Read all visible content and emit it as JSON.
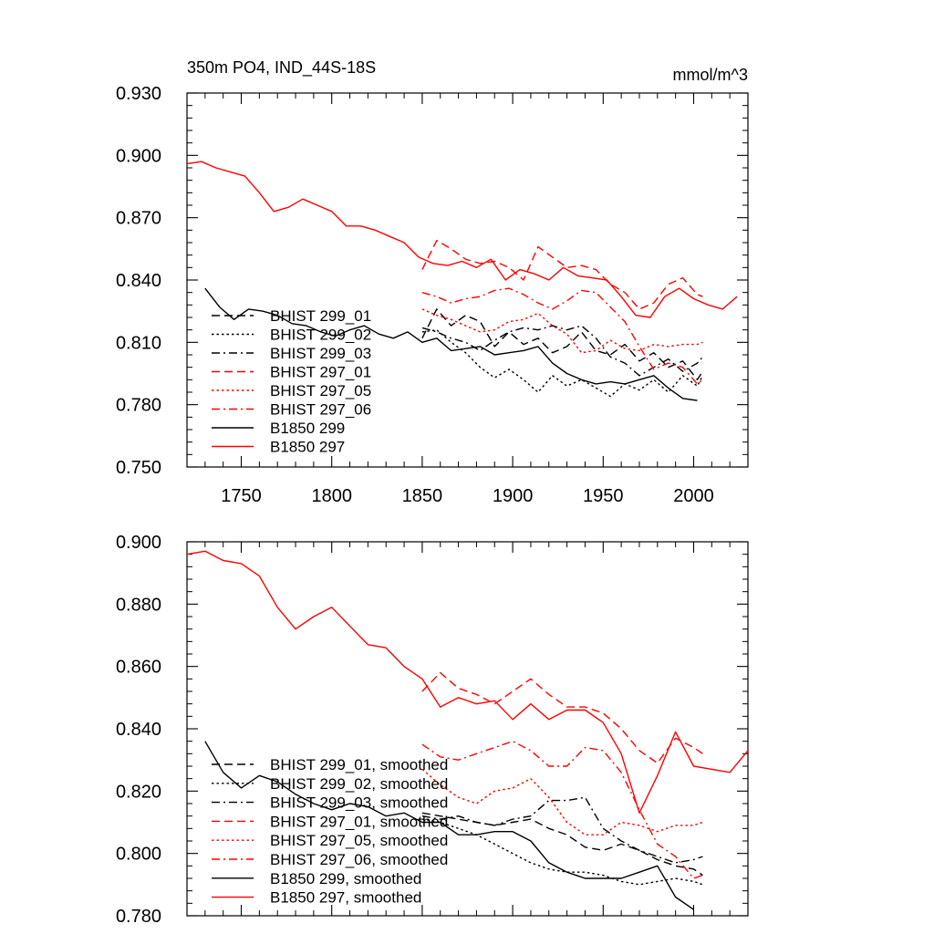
{
  "chart_data": [
    {
      "type": "line",
      "title": "350m PO4, IND_44S-18S",
      "units": "mmol/m^3",
      "xlim": [
        1720,
        2030
      ],
      "ylim": [
        0.75,
        0.93
      ],
      "xticks": [
        1750,
        1800,
        1850,
        1900,
        1950,
        2000
      ],
      "xtick_labels": [
        "1750",
        "1800",
        "1850",
        "1900",
        "1950",
        "2000"
      ],
      "yticks": [
        0.75,
        0.78,
        0.81,
        0.84,
        0.87,
        0.9,
        0.93
      ],
      "ytick_labels": [
        "0.750",
        "0.780",
        "0.810",
        "0.840",
        "0.870",
        "0.900",
        "0.930"
      ],
      "legend_position": "lower-left",
      "series": [
        {
          "name": "BHIST 299_01",
          "color": "#000000",
          "style": "dashed",
          "x": [
            1850,
            1858,
            1866,
            1874,
            1882,
            1890,
            1898,
            1906,
            1914,
            1922,
            1930,
            1938,
            1946,
            1954,
            1962,
            1970,
            1978,
            1986,
            1994,
            2002,
            2005
          ],
          "y": [
            0.812,
            0.826,
            0.818,
            0.823,
            0.82,
            0.808,
            0.815,
            0.809,
            0.812,
            0.805,
            0.808,
            0.815,
            0.806,
            0.804,
            0.809,
            0.801,
            0.805,
            0.798,
            0.801,
            0.792,
            0.796
          ]
        },
        {
          "name": "BHIST 299_02",
          "color": "#000000",
          "style": "dotted",
          "x": [
            1850,
            1858,
            1866,
            1874,
            1882,
            1890,
            1898,
            1906,
            1914,
            1922,
            1930,
            1938,
            1946,
            1954,
            1962,
            1970,
            1978,
            1986,
            1994,
            2002,
            2005
          ],
          "y": [
            0.815,
            0.816,
            0.81,
            0.805,
            0.798,
            0.793,
            0.797,
            0.792,
            0.786,
            0.794,
            0.789,
            0.792,
            0.788,
            0.784,
            0.79,
            0.787,
            0.792,
            0.786,
            0.794,
            0.789,
            0.794
          ]
        },
        {
          "name": "BHIST 299_03",
          "color": "#000000",
          "style": "dashdot",
          "x": [
            1850,
            1858,
            1866,
            1874,
            1882,
            1890,
            1898,
            1906,
            1914,
            1922,
            1930,
            1938,
            1946,
            1954,
            1962,
            1970,
            1978,
            1986,
            1994,
            2002,
            2005
          ],
          "y": [
            0.817,
            0.815,
            0.812,
            0.81,
            0.806,
            0.811,
            0.815,
            0.817,
            0.816,
            0.818,
            0.816,
            0.818,
            0.812,
            0.803,
            0.8,
            0.794,
            0.798,
            0.802,
            0.796,
            0.8,
            0.803
          ]
        },
        {
          "name": "BHIST 297_01",
          "color": "#ff0000",
          "style": "dashed",
          "x": [
            1850,
            1858,
            1866,
            1874,
            1882,
            1890,
            1898,
            1906,
            1914,
            1922,
            1930,
            1938,
            1946,
            1954,
            1962,
            1970,
            1978,
            1986,
            1994,
            2002,
            2005
          ],
          "y": [
            0.845,
            0.859,
            0.855,
            0.85,
            0.848,
            0.849,
            0.846,
            0.84,
            0.856,
            0.851,
            0.846,
            0.847,
            0.845,
            0.838,
            0.834,
            0.826,
            0.829,
            0.838,
            0.841,
            0.833,
            0.832
          ]
        },
        {
          "name": "BHIST 297_05",
          "color": "#ff0000",
          "style": "dotted",
          "x": [
            1850,
            1858,
            1866,
            1874,
            1882,
            1890,
            1898,
            1906,
            1914,
            1922,
            1930,
            1938,
            1946,
            1954,
            1962,
            1970,
            1978,
            1986,
            1994,
            2002,
            2005
          ],
          "y": [
            0.826,
            0.823,
            0.821,
            0.818,
            0.815,
            0.816,
            0.82,
            0.821,
            0.824,
            0.818,
            0.814,
            0.805,
            0.806,
            0.811,
            0.807,
            0.806,
            0.809,
            0.808,
            0.809,
            0.809,
            0.81
          ]
        },
        {
          "name": "BHIST 297_06",
          "color": "#ff0000",
          "style": "dashdot",
          "x": [
            1850,
            1858,
            1866,
            1874,
            1882,
            1890,
            1898,
            1906,
            1914,
            1922,
            1930,
            1938,
            1946,
            1954,
            1962,
            1970,
            1978,
            1986,
            1994,
            2002,
            2005
          ],
          "y": [
            0.834,
            0.832,
            0.829,
            0.831,
            0.832,
            0.835,
            0.836,
            0.833,
            0.829,
            0.826,
            0.83,
            0.835,
            0.834,
            0.827,
            0.82,
            0.808,
            0.797,
            0.8,
            0.798,
            0.79,
            0.792
          ]
        },
        {
          "name": "B1850 299",
          "color": "#000000",
          "style": "solid",
          "x": [
            1730,
            1738,
            1746,
            1754,
            1762,
            1770,
            1778,
            1786,
            1794,
            1802,
            1810,
            1818,
            1826,
            1834,
            1842,
            1850,
            1858,
            1866,
            1874,
            1882,
            1890,
            1898,
            1906,
            1914,
            1922,
            1930,
            1938,
            1946,
            1954,
            1962,
            1970,
            1978,
            1986,
            1994,
            2002
          ],
          "y": [
            0.836,
            0.827,
            0.821,
            0.826,
            0.825,
            0.823,
            0.819,
            0.818,
            0.815,
            0.813,
            0.816,
            0.818,
            0.814,
            0.812,
            0.815,
            0.81,
            0.812,
            0.806,
            0.807,
            0.808,
            0.804,
            0.805,
            0.806,
            0.808,
            0.8,
            0.795,
            0.792,
            0.79,
            0.791,
            0.79,
            0.792,
            0.794,
            0.788,
            0.783,
            0.782
          ]
        },
        {
          "name": "B1850 297",
          "color": "#ff0000",
          "style": "solid",
          "x": [
            1720,
            1728,
            1736,
            1744,
            1752,
            1760,
            1768,
            1776,
            1784,
            1792,
            1800,
            1808,
            1816,
            1824,
            1832,
            1840,
            1848,
            1856,
            1864,
            1872,
            1880,
            1888,
            1896,
            1904,
            1912,
            1920,
            1928,
            1936,
            1944,
            1952,
            1960,
            1968,
            1976,
            1984,
            1992,
            2000,
            2008,
            2016,
            2024
          ],
          "y": [
            0.896,
            0.897,
            0.894,
            0.892,
            0.89,
            0.882,
            0.873,
            0.875,
            0.879,
            0.876,
            0.873,
            0.866,
            0.866,
            0.864,
            0.861,
            0.858,
            0.851,
            0.848,
            0.847,
            0.849,
            0.846,
            0.85,
            0.84,
            0.845,
            0.843,
            0.84,
            0.846,
            0.842,
            0.841,
            0.84,
            0.832,
            0.823,
            0.822,
            0.832,
            0.836,
            0.831,
            0.828,
            0.826,
            0.832
          ]
        }
      ]
    },
    {
      "type": "line",
      "title": "",
      "xlim": [
        1720,
        2030
      ],
      "ylim": [
        0.78,
        0.9
      ],
      "xticks": [
        1750,
        1800,
        1850,
        1900,
        1950,
        2000
      ],
      "yticks": [
        0.78,
        0.8,
        0.82,
        0.84,
        0.86,
        0.88,
        0.9
      ],
      "ytick_labels": [
        "0.780",
        "0.800",
        "0.820",
        "0.840",
        "0.860",
        "0.880",
        "0.900"
      ],
      "legend_position": "lower-left",
      "series": [
        {
          "name": "BHIST 299_01, smoothed",
          "color": "#000000",
          "style": "dashed",
          "x": [
            1850,
            1860,
            1870,
            1880,
            1890,
            1900,
            1910,
            1920,
            1930,
            1940,
            1950,
            1960,
            1970,
            1980,
            1990,
            2000,
            2005
          ],
          "y": [
            0.813,
            0.812,
            0.811,
            0.81,
            0.809,
            0.81,
            0.811,
            0.808,
            0.806,
            0.802,
            0.801,
            0.803,
            0.801,
            0.798,
            0.796,
            0.795,
            0.793
          ]
        },
        {
          "name": "BHIST 299_02, smoothed",
          "color": "#000000",
          "style": "dotted",
          "x": [
            1850,
            1860,
            1870,
            1880,
            1890,
            1900,
            1910,
            1920,
            1930,
            1940,
            1950,
            1960,
            1970,
            1980,
            1990,
            2000,
            2005
          ],
          "y": [
            0.811,
            0.81,
            0.808,
            0.806,
            0.803,
            0.8,
            0.797,
            0.795,
            0.794,
            0.794,
            0.793,
            0.791,
            0.79,
            0.791,
            0.792,
            0.791,
            0.79
          ]
        },
        {
          "name": "BHIST 299_03, smoothed",
          "color": "#000000",
          "style": "dashdot",
          "x": [
            1850,
            1860,
            1870,
            1880,
            1890,
            1900,
            1910,
            1920,
            1930,
            1940,
            1950,
            1960,
            1970,
            1980,
            1990,
            2000,
            2005
          ],
          "y": [
            0.812,
            0.811,
            0.812,
            0.81,
            0.809,
            0.811,
            0.812,
            0.817,
            0.817,
            0.818,
            0.808,
            0.804,
            0.801,
            0.799,
            0.797,
            0.798,
            0.799
          ]
        },
        {
          "name": "BHIST 297_01, smoothed",
          "color": "#ff0000",
          "style": "dashed",
          "x": [
            1850,
            1860,
            1870,
            1880,
            1890,
            1900,
            1910,
            1920,
            1930,
            1940,
            1950,
            1960,
            1970,
            1980,
            1990,
            2000,
            2005
          ],
          "y": [
            0.852,
            0.858,
            0.853,
            0.851,
            0.848,
            0.852,
            0.856,
            0.851,
            0.847,
            0.847,
            0.845,
            0.84,
            0.833,
            0.829,
            0.837,
            0.834,
            0.832
          ]
        },
        {
          "name": "BHIST 297_05, smoothed",
          "color": "#ff0000",
          "style": "dotted",
          "x": [
            1850,
            1860,
            1870,
            1880,
            1890,
            1900,
            1910,
            1920,
            1930,
            1940,
            1950,
            1960,
            1970,
            1980,
            1990,
            2000,
            2005
          ],
          "y": [
            0.827,
            0.822,
            0.818,
            0.816,
            0.82,
            0.821,
            0.824,
            0.818,
            0.81,
            0.806,
            0.806,
            0.81,
            0.809,
            0.807,
            0.809,
            0.809,
            0.81
          ]
        },
        {
          "name": "BHIST 297_06, smoothed",
          "color": "#ff0000",
          "style": "dashdot",
          "x": [
            1850,
            1860,
            1870,
            1880,
            1890,
            1900,
            1910,
            1920,
            1930,
            1940,
            1950,
            1960,
            1970,
            1980,
            1990,
            2000,
            2005
          ],
          "y": [
            0.835,
            0.831,
            0.83,
            0.832,
            0.834,
            0.836,
            0.833,
            0.828,
            0.828,
            0.834,
            0.833,
            0.826,
            0.814,
            0.803,
            0.799,
            0.792,
            0.793
          ]
        },
        {
          "name": "B1850 299, smoothed",
          "color": "#000000",
          "style": "solid",
          "x": [
            1730,
            1740,
            1750,
            1760,
            1770,
            1780,
            1790,
            1800,
            1810,
            1820,
            1830,
            1840,
            1850,
            1860,
            1870,
            1880,
            1890,
            1900,
            1910,
            1920,
            1930,
            1940,
            1950,
            1960,
            1970,
            1980,
            1990,
            2000
          ],
          "y": [
            0.836,
            0.826,
            0.821,
            0.825,
            0.823,
            0.819,
            0.816,
            0.814,
            0.816,
            0.815,
            0.812,
            0.813,
            0.81,
            0.81,
            0.806,
            0.806,
            0.807,
            0.807,
            0.804,
            0.797,
            0.794,
            0.792,
            0.792,
            0.792,
            0.794,
            0.796,
            0.786,
            0.782
          ]
        },
        {
          "name": "B1850 297, smoothed",
          "color": "#ff0000",
          "style": "solid",
          "x": [
            1720,
            1730,
            1740,
            1750,
            1760,
            1770,
            1780,
            1790,
            1800,
            1810,
            1820,
            1830,
            1840,
            1850,
            1860,
            1870,
            1880,
            1890,
            1900,
            1910,
            1920,
            1930,
            1940,
            1950,
            1960,
            1970,
            1980,
            1990,
            2000,
            2010,
            2020,
            2030
          ],
          "y": [
            0.896,
            0.897,
            0.894,
            0.893,
            0.889,
            0.879,
            0.872,
            0.876,
            0.879,
            0.873,
            0.867,
            0.866,
            0.86,
            0.856,
            0.847,
            0.85,
            0.848,
            0.849,
            0.843,
            0.848,
            0.843,
            0.846,
            0.846,
            0.842,
            0.832,
            0.813,
            0.825,
            0.839,
            0.828,
            0.827,
            0.826,
            0.833
          ]
        }
      ]
    }
  ]
}
